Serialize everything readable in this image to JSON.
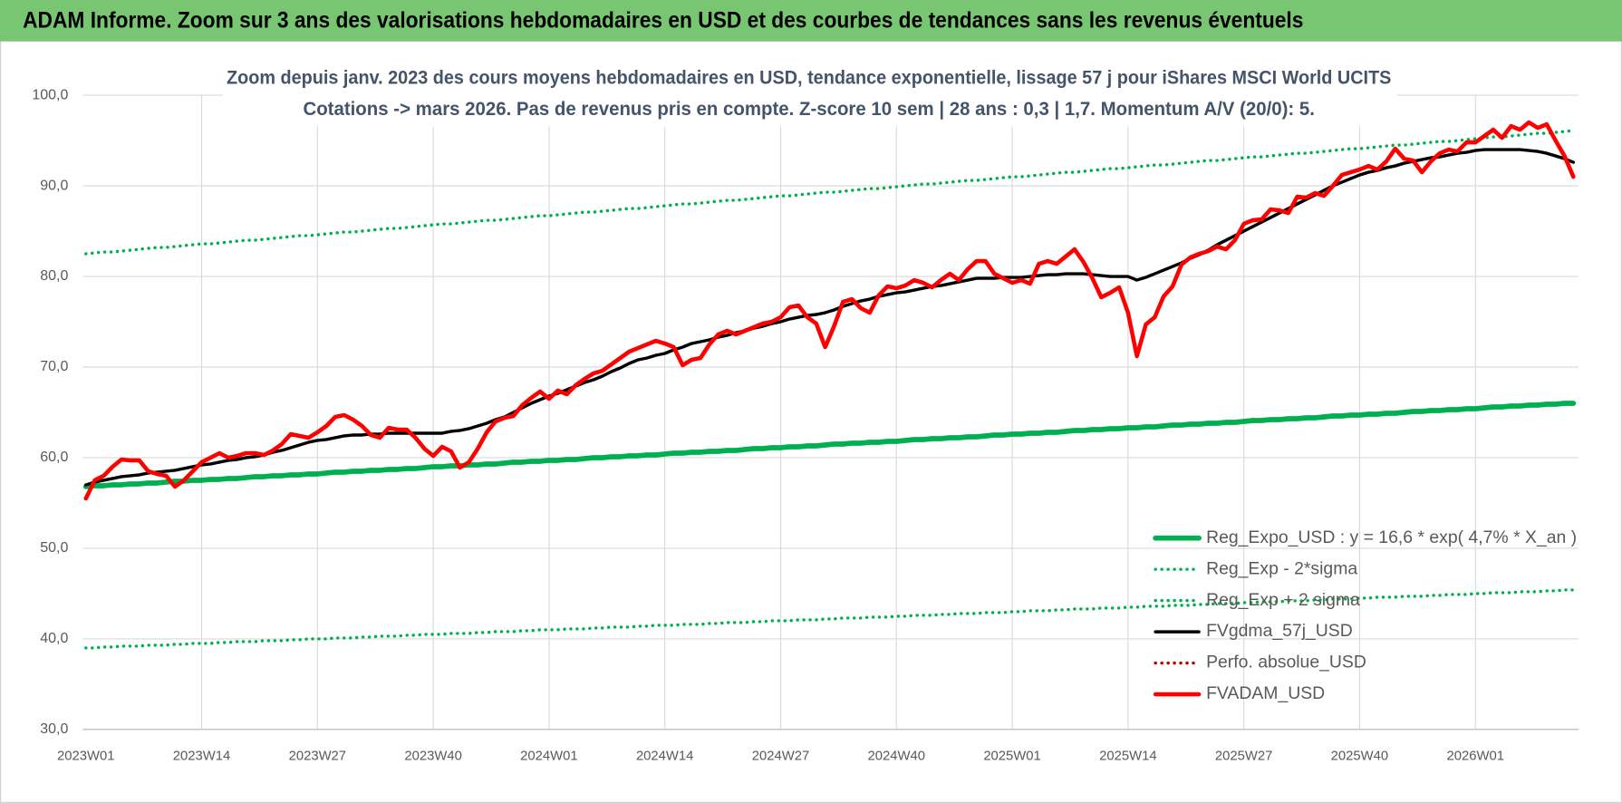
{
  "header": "ADAM Informe. Zoom sur 3 ans des valorisations hebdomadaires en USD et des courbes de tendances sans les revenus éventuels",
  "chart_data": {
    "type": "line",
    "title": "Zoom depuis janv. 2023 des cours moyens hebdomadaires en USD, tendance exponentielle, lissage 57 j pour iShares MSCI World UCITS",
    "subtitle": "Cotations -> mars 2026. Pas de revenus pris en compte. Z-score 10 sem | 28 ans : 0,3 | 1,7. Momentum A/V (20/0): 5.",
    "ylim": [
      30,
      100
    ],
    "yticks": [
      {
        "value": 30,
        "label": "30,0"
      },
      {
        "value": 40,
        "label": "40,0"
      },
      {
        "value": 50,
        "label": "50,0"
      },
      {
        "value": 60,
        "label": "60,0"
      },
      {
        "value": 70,
        "label": "70,0"
      },
      {
        "value": 80,
        "label": "80,0"
      },
      {
        "value": 90,
        "label": "90,0"
      },
      {
        "value": 100,
        "label": "100,0"
      }
    ],
    "grid": true,
    "legend": "lower right",
    "categories": [
      "2023W01",
      null,
      null,
      null,
      null,
      null,
      null,
      null,
      null,
      null,
      null,
      null,
      null,
      "2023W14",
      null,
      null,
      null,
      null,
      null,
      null,
      null,
      null,
      null,
      null,
      null,
      null,
      "2023W27",
      null,
      null,
      null,
      null,
      null,
      null,
      null,
      null,
      null,
      null,
      null,
      null,
      "2023W40",
      null,
      null,
      null,
      null,
      null,
      null,
      null,
      null,
      null,
      null,
      null,
      null,
      "2024W01",
      null,
      null,
      null,
      null,
      null,
      null,
      null,
      null,
      null,
      null,
      null,
      null,
      "2024W14",
      null,
      null,
      null,
      null,
      null,
      null,
      null,
      null,
      null,
      null,
      null,
      null,
      "2024W27",
      null,
      null,
      null,
      null,
      null,
      null,
      null,
      null,
      null,
      null,
      null,
      null,
      "2024W40",
      null,
      null,
      null,
      null,
      null,
      null,
      null,
      null,
      null,
      null,
      null,
      null,
      "2025W01",
      null,
      null,
      null,
      null,
      null,
      null,
      null,
      null,
      null,
      null,
      null,
      null,
      "2025W14",
      null,
      null,
      null,
      null,
      null,
      null,
      null,
      null,
      null,
      null,
      null,
      null,
      "2025W27",
      null,
      null,
      null,
      null,
      null,
      null,
      null,
      null,
      null,
      null,
      null,
      null,
      "2025W40",
      null,
      null,
      null,
      null,
      null,
      null,
      null,
      null,
      null,
      null,
      null,
      null,
      "2026W01",
      null,
      null,
      null,
      null,
      null,
      null,
      null,
      null,
      null,
      null,
      null
    ],
    "series": [
      {
        "name": "Reg_Expo_USD : y = 16,6 * exp( 4,7% *  X_an )",
        "color": "#00b050",
        "dash": "solid",
        "values": [
          56.8,
          56.9,
          56.9,
          57.0,
          57.0,
          57.1,
          57.1,
          57.2,
          57.2,
          57.3,
          57.4,
          57.4,
          57.5,
          57.5,
          57.6,
          57.6,
          57.7,
          57.7,
          57.8,
          57.9,
          57.9,
          58.0,
          58.0,
          58.1,
          58.1,
          58.2,
          58.2,
          58.3,
          58.4,
          58.4,
          58.5,
          58.5,
          58.6,
          58.6,
          58.7,
          58.7,
          58.8,
          58.8,
          58.9,
          59.0,
          59.0,
          59.1,
          59.1,
          59.2,
          59.2,
          59.3,
          59.3,
          59.4,
          59.5,
          59.5,
          59.6,
          59.6,
          59.7,
          59.7,
          59.8,
          59.8,
          59.9,
          60.0,
          60.0,
          60.1,
          60.1,
          60.2,
          60.2,
          60.3,
          60.3,
          60.4,
          60.5,
          60.5,
          60.6,
          60.6,
          60.7,
          60.7,
          60.8,
          60.8,
          60.9,
          61.0,
          61.0,
          61.1,
          61.1,
          61.2,
          61.2,
          61.3,
          61.3,
          61.4,
          61.5,
          61.5,
          61.6,
          61.6,
          61.7,
          61.7,
          61.8,
          61.8,
          61.9,
          62.0,
          62.0,
          62.1,
          62.1,
          62.2,
          62.2,
          62.3,
          62.3,
          62.4,
          62.5,
          62.5,
          62.6,
          62.6,
          62.7,
          62.7,
          62.8,
          62.8,
          62.9,
          63.0,
          63.0,
          63.1,
          63.1,
          63.2,
          63.2,
          63.3,
          63.3,
          63.4,
          63.4,
          63.5,
          63.6,
          63.6,
          63.7,
          63.7,
          63.8,
          63.8,
          63.9,
          63.9,
          64.0,
          64.1,
          64.1,
          64.2,
          64.2,
          64.3,
          64.3,
          64.4,
          64.4,
          64.5,
          64.6,
          64.6,
          64.7,
          64.7,
          64.8,
          64.8,
          64.9,
          64.9,
          65.0,
          65.1,
          65.1,
          65.2,
          65.2,
          65.3,
          65.3,
          65.4,
          65.4,
          65.5,
          65.6,
          65.6,
          65.7,
          65.7,
          65.8,
          65.8,
          65.9,
          65.9,
          66.0,
          66.0
        ]
      },
      {
        "name": "Reg_Exp - 2*sigma",
        "color": "#00b050",
        "dash": "dot",
        "values": [
          39.0,
          39.0,
          39.1,
          39.1,
          39.2,
          39.2,
          39.2,
          39.3,
          39.3,
          39.3,
          39.4,
          39.4,
          39.5,
          39.5,
          39.5,
          39.6,
          39.6,
          39.7,
          39.7,
          39.7,
          39.8,
          39.8,
          39.8,
          39.9,
          39.9,
          40.0,
          40.0,
          40.0,
          40.1,
          40.1,
          40.1,
          40.2,
          40.2,
          40.3,
          40.3,
          40.3,
          40.4,
          40.4,
          40.5,
          40.5,
          40.5,
          40.6,
          40.6,
          40.6,
          40.7,
          40.7,
          40.8,
          40.8,
          40.8,
          40.9,
          40.9,
          41.0,
          41.0,
          41.0,
          41.1,
          41.1,
          41.1,
          41.2,
          41.2,
          41.3,
          41.3,
          41.3,
          41.4,
          41.4,
          41.5,
          41.5,
          41.5,
          41.6,
          41.6,
          41.6,
          41.7,
          41.7,
          41.8,
          41.8,
          41.8,
          41.9,
          41.9,
          42.0,
          42.0,
          42.0,
          42.1,
          42.1,
          42.1,
          42.2,
          42.2,
          42.3,
          42.3,
          42.3,
          42.4,
          42.4,
          42.4,
          42.5,
          42.5,
          42.6,
          42.6,
          42.6,
          42.7,
          42.7,
          42.8,
          42.8,
          42.8,
          42.9,
          42.9,
          42.9,
          43.0,
          43.0,
          43.1,
          43.1,
          43.1,
          43.2,
          43.2,
          43.3,
          43.3,
          43.3,
          43.4,
          43.4,
          43.4,
          43.5,
          43.5,
          43.6,
          43.6,
          43.6,
          43.7,
          43.7,
          43.7,
          43.8,
          43.8,
          43.9,
          43.9,
          43.9,
          44.0,
          44.0,
          44.1,
          44.1,
          44.1,
          44.2,
          44.2,
          44.2,
          44.3,
          44.3,
          44.4,
          44.4,
          44.4,
          44.5,
          44.5,
          44.6,
          44.6,
          44.6,
          44.7,
          44.7,
          44.7,
          44.8,
          44.8,
          44.9,
          44.9,
          44.9,
          45.0,
          45.0,
          45.1,
          45.1,
          45.1,
          45.2,
          45.2,
          45.2,
          45.3,
          45.3,
          45.4,
          45.4
        ]
      },
      {
        "name": "Reg_Exp + 2 sigma",
        "color": "#00b050",
        "dash": "dot",
        "values": [
          82.5,
          82.6,
          82.7,
          82.7,
          82.8,
          82.9,
          83.0,
          83.1,
          83.2,
          83.2,
          83.3,
          83.4,
          83.5,
          83.6,
          83.6,
          83.7,
          83.8,
          83.9,
          84.0,
          84.0,
          84.1,
          84.2,
          84.3,
          84.4,
          84.5,
          84.5,
          84.6,
          84.7,
          84.8,
          84.9,
          84.9,
          85.0,
          85.1,
          85.2,
          85.3,
          85.3,
          85.4,
          85.5,
          85.6,
          85.7,
          85.8,
          85.8,
          85.9,
          86.0,
          86.1,
          86.2,
          86.2,
          86.3,
          86.4,
          86.5,
          86.6,
          86.7,
          86.7,
          86.8,
          86.9,
          87.0,
          87.1,
          87.1,
          87.2,
          87.3,
          87.4,
          87.5,
          87.5,
          87.6,
          87.7,
          87.8,
          87.9,
          88.0,
          88.0,
          88.1,
          88.2,
          88.3,
          88.4,
          88.4,
          88.5,
          88.6,
          88.7,
          88.8,
          88.9,
          88.9,
          89.0,
          89.1,
          89.2,
          89.3,
          89.3,
          89.4,
          89.5,
          89.6,
          89.7,
          89.7,
          89.8,
          89.9,
          90.0,
          90.1,
          90.2,
          90.2,
          90.3,
          90.4,
          90.5,
          90.6,
          90.6,
          90.7,
          90.8,
          90.9,
          91.0,
          91.0,
          91.1,
          91.2,
          91.3,
          91.4,
          91.5,
          91.5,
          91.6,
          91.7,
          91.8,
          91.9,
          91.9,
          92.0,
          92.1,
          92.2,
          92.3,
          92.3,
          92.4,
          92.5,
          92.6,
          92.7,
          92.8,
          92.8,
          92.9,
          93.0,
          93.1,
          93.2,
          93.2,
          93.3,
          93.4,
          93.5,
          93.6,
          93.6,
          93.7,
          93.8,
          93.9,
          94.0,
          94.1,
          94.1,
          94.2,
          94.3,
          94.4,
          94.5,
          94.5,
          94.6,
          94.7,
          94.8,
          94.9,
          94.9,
          95.0,
          95.1,
          95.2,
          95.3,
          95.4,
          95.4,
          95.5,
          95.6,
          95.7,
          95.8,
          95.8,
          95.9,
          96.0,
          96.1
        ]
      },
      {
        "name": "FVgdma_57j_USD",
        "color": "#000000",
        "dash": "solid",
        "values": [
          57.0,
          57.3,
          57.5,
          57.7,
          57.9,
          58.0,
          58.1,
          58.3,
          58.4,
          58.5,
          58.6,
          58.8,
          59.0,
          59.2,
          59.3,
          59.5,
          59.7,
          59.8,
          60.0,
          60.1,
          60.3,
          60.6,
          60.8,
          61.1,
          61.4,
          61.7,
          61.9,
          62.0,
          62.2,
          62.4,
          62.5,
          62.5,
          62.6,
          62.6,
          62.7,
          62.7,
          62.7,
          62.7,
          62.7,
          62.7,
          62.7,
          62.9,
          63.0,
          63.2,
          63.5,
          63.8,
          64.2,
          64.5,
          65.0,
          65.5,
          66.0,
          66.4,
          66.8,
          67.1,
          67.5,
          67.9,
          68.3,
          68.6,
          69.0,
          69.5,
          69.9,
          70.4,
          70.8,
          71.0,
          71.3,
          71.5,
          71.9,
          72.2,
          72.6,
          72.8,
          73.0,
          73.3,
          73.5,
          73.8,
          74.0,
          74.3,
          74.5,
          74.8,
          75.0,
          75.3,
          75.5,
          75.7,
          75.8,
          76.0,
          76.3,
          76.7,
          77.0,
          77.3,
          77.5,
          77.8,
          78.0,
          78.2,
          78.3,
          78.5,
          78.7,
          78.9,
          79.0,
          79.2,
          79.4,
          79.6,
          79.8,
          79.8,
          79.8,
          79.9,
          79.9,
          79.9,
          80.0,
          80.1,
          80.2,
          80.2,
          80.3,
          80.3,
          80.3,
          80.2,
          80.1,
          80.0,
          80.0,
          80.0,
          79.6,
          79.9,
          80.3,
          80.7,
          81.1,
          81.5,
          82.0,
          82.4,
          82.9,
          83.5,
          84.0,
          84.5,
          85.0,
          85.5,
          86.0,
          86.5,
          87.0,
          87.5,
          88.0,
          88.5,
          89.0,
          89.5,
          90.0,
          90.4,
          90.8,
          91.2,
          91.5,
          91.7,
          92.0,
          92.2,
          92.5,
          92.7,
          92.9,
          93.1,
          93.2,
          93.4,
          93.6,
          93.7,
          93.9,
          94.0,
          94.0,
          94.0,
          94.0,
          94.0,
          93.9,
          93.8,
          93.6,
          93.3,
          93.0,
          92.6
        ]
      },
      {
        "name": "Perfo. absolue_USD",
        "color": "#c00000",
        "dash": "dot"
      },
      {
        "name": "FVADAM_USD",
        "color": "#ff0000",
        "dash": "solid",
        "values": [
          55.5,
          57.5,
          58.0,
          59.0,
          59.8,
          59.7,
          59.7,
          58.5,
          58.2,
          58.0,
          56.8,
          57.5,
          58.5,
          59.5,
          60.0,
          60.5,
          60.0,
          60.2,
          60.5,
          60.5,
          60.3,
          60.8,
          61.5,
          62.6,
          62.4,
          62.2,
          62.8,
          63.5,
          64.5,
          64.7,
          64.2,
          63.5,
          62.5,
          62.2,
          63.3,
          63.1,
          63.1,
          62.2,
          61.0,
          60.2,
          61.2,
          60.7,
          58.9,
          59.5,
          61.0,
          62.8,
          64.0,
          64.4,
          64.6,
          65.8,
          66.6,
          67.3,
          66.5,
          67.4,
          67.0,
          68.0,
          68.7,
          69.3,
          69.6,
          70.3,
          71.0,
          71.7,
          72.1,
          72.5,
          72.9,
          72.6,
          72.2,
          70.2,
          70.8,
          71.0,
          72.5,
          73.6,
          74.0,
          73.6,
          74.0,
          74.4,
          74.8,
          75.0,
          75.5,
          76.6,
          76.8,
          75.5,
          74.8,
          72.2,
          74.5,
          77.2,
          77.5,
          76.5,
          76.0,
          77.9,
          78.9,
          78.7,
          79.0,
          79.6,
          79.3,
          78.8,
          79.6,
          80.3,
          79.6,
          80.8,
          81.7,
          81.7,
          80.3,
          79.8,
          79.3,
          79.6,
          79.2,
          81.4,
          81.7,
          81.4,
          82.2,
          83.0,
          81.6,
          79.8,
          77.7,
          78.2,
          78.8,
          76.0,
          71.2,
          74.7,
          75.5,
          77.8,
          78.9,
          81.3,
          82.1,
          82.5,
          82.8,
          83.3,
          83.0,
          84.0,
          85.8,
          86.2,
          86.3,
          87.4,
          87.3,
          87.0,
          88.8,
          88.7,
          89.2,
          88.9,
          90.0,
          91.2,
          91.5,
          91.8,
          92.2,
          91.8,
          92.7,
          94.1,
          93.0,
          92.8,
          91.5,
          92.7,
          93.6,
          94.0,
          93.8,
          94.8,
          94.8,
          95.5,
          96.2,
          95.3,
          96.6,
          96.2,
          97.0,
          96.4,
          96.8,
          95.0,
          93.3,
          91.0
        ]
      }
    ]
  }
}
